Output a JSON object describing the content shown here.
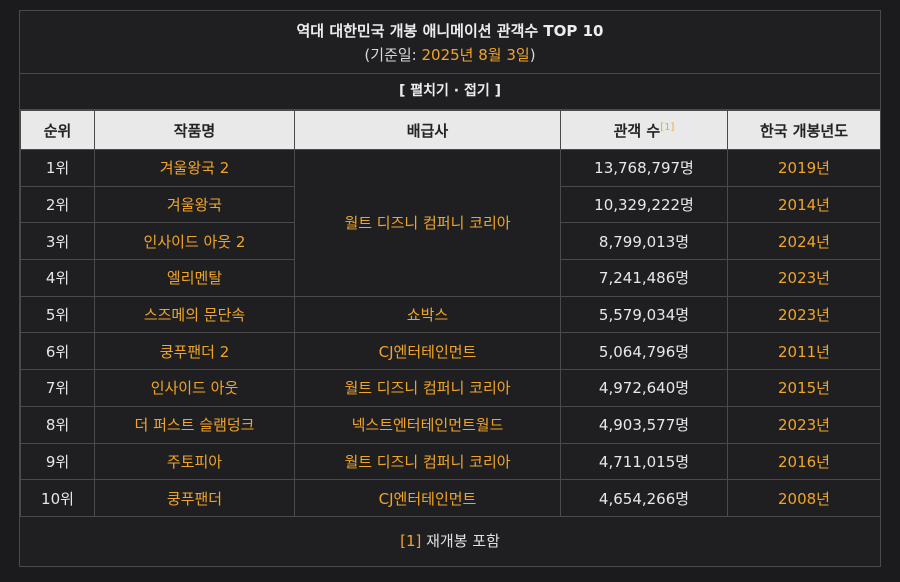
{
  "title": {
    "main": "역대 대한민국 개봉 애니메이션 관객수 TOP 10",
    "sub_prefix": "(기준일: ",
    "sub_date": "2025년 8월 3일",
    "sub_suffix": ")"
  },
  "toggle_label": "[ 펼치기 · 접기 ]",
  "table": {
    "headers": [
      "순위",
      "작품명",
      "배급사",
      "관객 수",
      "한국 개봉년도"
    ],
    "header_ref": "[1]",
    "rows": [
      {
        "rank": "1위",
        "title": "겨울왕국 2",
        "distributor": "월트 디즈니 컴퍼니 코리아",
        "audience": "13,768,797명",
        "year": "2019년"
      },
      {
        "rank": "2위",
        "title": "겨울왕국",
        "distributor": "월트 디즈니 컴퍼니 코리아",
        "audience": "10,329,222명",
        "year": "2014년"
      },
      {
        "rank": "3위",
        "title": "인사이드 아웃 2",
        "distributor": "월트 디즈니 컴퍼니 코리아",
        "audience": "8,799,013명",
        "year": "2024년"
      },
      {
        "rank": "4위",
        "title": "엘리멘탈",
        "distributor": "월트 디즈니 컴퍼니 코리아",
        "audience": "7,241,486명",
        "year": "2023년"
      },
      {
        "rank": "5위",
        "title": "스즈메의 문단속",
        "distributor": "쇼박스",
        "audience": "5,579,034명",
        "year": "2023년"
      },
      {
        "rank": "6위",
        "title": "쿵푸팬더 2",
        "distributor": "CJ엔터테인먼트",
        "audience": "5,064,796명",
        "year": "2011년"
      },
      {
        "rank": "7위",
        "title": "인사이드 아웃",
        "distributor": "월트 디즈니 컴퍼니 코리아",
        "audience": "4,972,640명",
        "year": "2015년"
      },
      {
        "rank": "8위",
        "title": "더 퍼스트 슬램덩크",
        "distributor": "넥스트엔터테인먼트월드",
        "audience": "4,903,577명",
        "year": "2023년"
      },
      {
        "rank": "9위",
        "title": "주토피아",
        "distributor": "월트 디즈니 컴퍼니 코리아",
        "audience": "4,711,015명",
        "year": "2016년"
      },
      {
        "rank": "10위",
        "title": "쿵푸팬더",
        "distributor": "CJ엔터테인먼트",
        "audience": "4,654,266명",
        "year": "2008년"
      }
    ]
  },
  "footnote": {
    "ref": "[1]",
    "text": " 재개봉 포함"
  },
  "colors": {
    "accent": "#f0a52a",
    "background": "#1f1f21",
    "header_bg": "#e9e9e9",
    "border": "#4a4a4a"
  }
}
